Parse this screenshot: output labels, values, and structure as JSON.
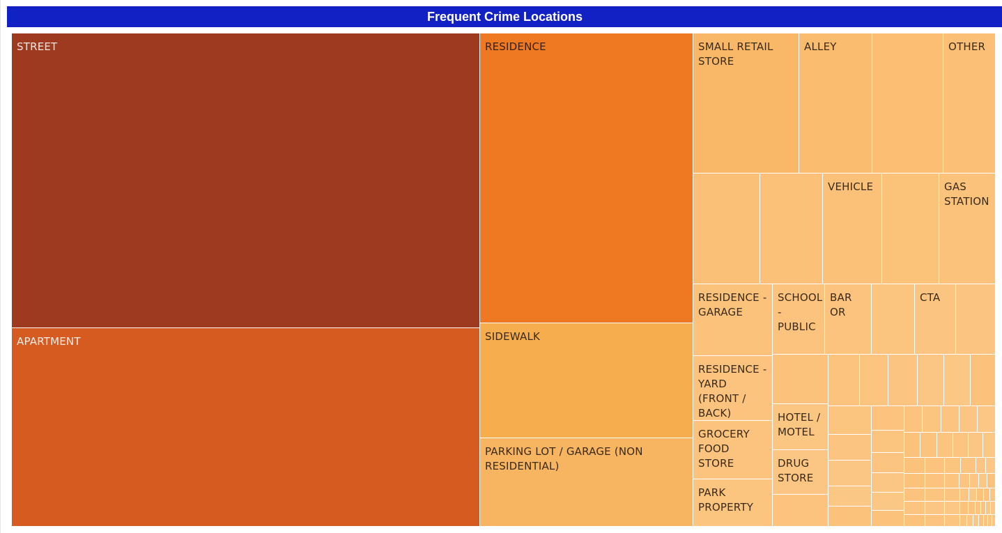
{
  "title": "Frequent Crime Locations",
  "colors": {
    "title_bg": "#1221c4",
    "title_text": "#ffffff",
    "tile_border": "#ffffff"
  },
  "chart_data": {
    "type": "treemap",
    "title": "Frequent Crime Locations",
    "size_unit": "relative crime count (estimated from tile area)",
    "items": [
      {
        "label": "STREET",
        "value": 28.3,
        "color": "#9e3a20",
        "text_color": "#f6e9e3"
      },
      {
        "label": "APARTMENT",
        "value": 19.7,
        "color": "#d55b20",
        "text_color": "#fbeee6"
      },
      {
        "label": "RESIDENCE",
        "value": 12.7,
        "color": "#ef7823",
        "text_color": "#3a2010"
      },
      {
        "label": "SIDEWALK",
        "value": 5.0,
        "color": "#f5ad4e",
        "text_color": "#3a2a15"
      },
      {
        "label": "PARKING LOT / GARAGE (NON RESIDENTIAL)",
        "value": 3.8,
        "color": "#f7b561",
        "text_color": "#3a2a15"
      },
      {
        "label": "SMALL RETAIL STORE",
        "value": 3.0,
        "color": "#f9b868",
        "text_color": "#3a2a15"
      },
      {
        "label": "ALLEY",
        "value": 2.1,
        "color": "#fabc6e",
        "text_color": "#3a2a15"
      },
      {
        "label": "",
        "value": 2.0,
        "color": "#fbbe72",
        "text_color": "#3a2a15"
      },
      {
        "label": "OTHER",
        "value": 1.5,
        "color": "#fbc075",
        "text_color": "#3a2a15"
      },
      {
        "label": "",
        "value": 1.5,
        "color": "#fbc077",
        "text_color": "#3a2a15"
      },
      {
        "label": "",
        "value": 1.4,
        "color": "#fbc178",
        "text_color": "#3a2a15"
      },
      {
        "label": "VEHICLE",
        "value": 1.35,
        "color": "#fbc179",
        "text_color": "#3a2a15"
      },
      {
        "label": "",
        "value": 1.3,
        "color": "#fbc27a",
        "text_color": "#3a2a15"
      },
      {
        "label": "GAS STATION",
        "value": 1.25,
        "color": "#fbc27b",
        "text_color": "#3a2a15"
      },
      {
        "label": "RESIDENCE - GARAGE",
        "value": 1.15,
        "color": "#fbc27c",
        "text_color": "#3a2a15"
      },
      {
        "label": "SCHOOL - PUBLIC",
        "value": 0.77,
        "color": "#fbc37d",
        "text_color": "#3a2a15"
      },
      {
        "label": "BAR OR",
        "value": 0.68,
        "color": "#fbc37e",
        "text_color": "#3a2a15"
      },
      {
        "label": "",
        "value": 0.61,
        "color": "#fbc47f",
        "text_color": "#3a2a15"
      },
      {
        "label": "CTA",
        "value": 0.6,
        "color": "#fbc480",
        "text_color": "#3a2a15"
      },
      {
        "label": "",
        "value": 0.57,
        "color": "#fbc581",
        "text_color": "#3a2a15"
      },
      {
        "label": "RESIDENCE - YARD (FRONT / BACK)",
        "value": 1.0,
        "color": "#fbc37d",
        "text_color": "#3a2a15"
      },
      {
        "label": "GROCERY FOOD STORE",
        "value": 0.95,
        "color": "#fbc37e",
        "text_color": "#3a2a15"
      },
      {
        "label": "PARK PROPERTY",
        "value": 0.77,
        "color": "#fbc47f",
        "text_color": "#3a2a15"
      },
      {
        "label": "HOTEL / MOTEL",
        "value": 0.5,
        "color": "#fbc582",
        "text_color": "#3a2a15"
      },
      {
        "label": "DRUG STORE",
        "value": 0.46,
        "color": "#fbc583",
        "text_color": "#3a2a15"
      }
    ]
  }
}
